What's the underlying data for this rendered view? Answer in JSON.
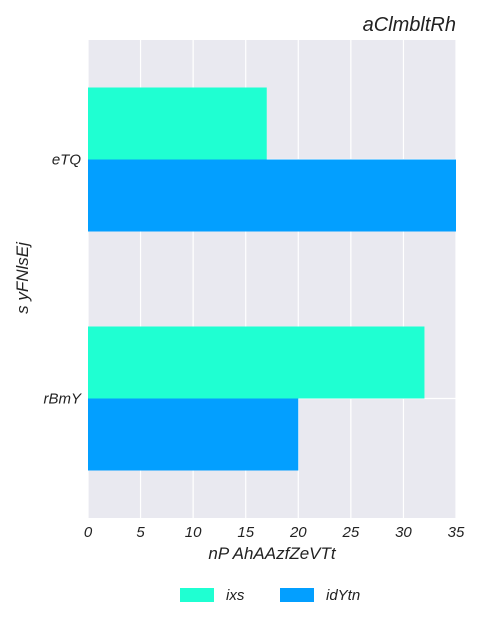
{
  "chart_data": {
    "type": "bar",
    "orientation": "horizontal",
    "title": "aClmbltRh",
    "xlabel": "nP AhAAzfZeVTt",
    "ylabel": "s yFNlsEj",
    "categories": [
      "eTQ",
      "rBmY"
    ],
    "series": [
      {
        "name": "ixs",
        "values": [
          17,
          32
        ],
        "color": "#1fffd2"
      },
      {
        "name": "idYtn",
        "values": [
          35,
          20
        ],
        "color": "#039fff"
      }
    ],
    "xlim": [
      0,
      35
    ],
    "xticks": [
      0,
      5,
      10,
      15,
      20,
      25,
      30,
      35
    ],
    "grid": true,
    "legend_position": "bottom-center",
    "background": "#e9e9f0"
  }
}
